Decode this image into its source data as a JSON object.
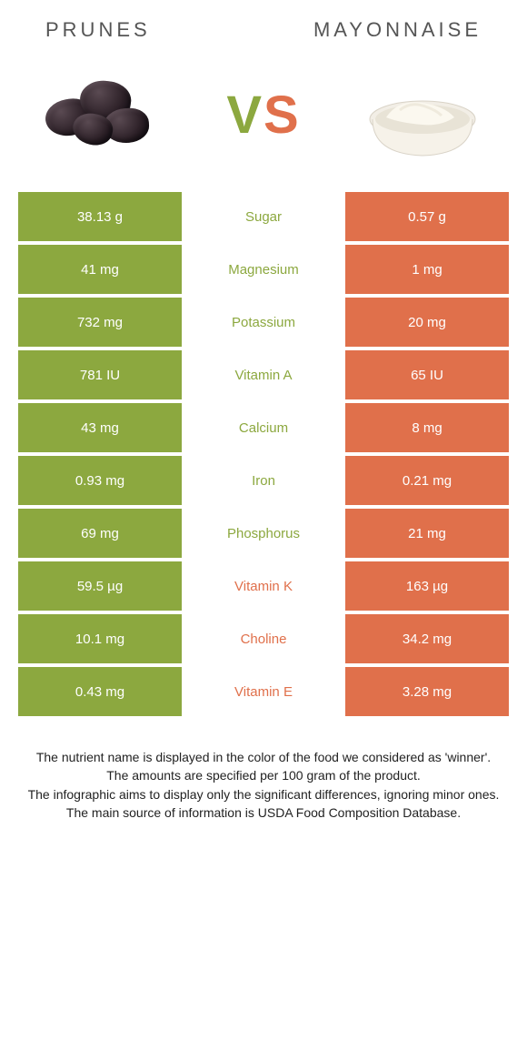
{
  "header": {
    "left_title": "PRUNES",
    "right_title": "MAYONNAISE"
  },
  "vs": {
    "v": "V",
    "s": "S"
  },
  "colors": {
    "left_bar": "#8ca83f",
    "right_bar": "#e0704b",
    "mid_text_left_win": "#8ca83f",
    "mid_text_right_win": "#e0704b",
    "bg": "#ffffff"
  },
  "rows": [
    {
      "left": "38.13 g",
      "name": "Sugar",
      "right": "0.57 g",
      "winner": "left"
    },
    {
      "left": "41 mg",
      "name": "Magnesium",
      "right": "1 mg",
      "winner": "left"
    },
    {
      "left": "732 mg",
      "name": "Potassium",
      "right": "20 mg",
      "winner": "left"
    },
    {
      "left": "781 IU",
      "name": "Vitamin A",
      "right": "65 IU",
      "winner": "left"
    },
    {
      "left": "43 mg",
      "name": "Calcium",
      "right": "8 mg",
      "winner": "left"
    },
    {
      "left": "0.93 mg",
      "name": "Iron",
      "right": "0.21 mg",
      "winner": "left"
    },
    {
      "left": "69 mg",
      "name": "Phosphorus",
      "right": "21 mg",
      "winner": "left"
    },
    {
      "left": "59.5 µg",
      "name": "Vitamin K",
      "right": "163 µg",
      "winner": "right"
    },
    {
      "left": "10.1 mg",
      "name": "Choline",
      "right": "34.2 mg",
      "winner": "right"
    },
    {
      "left": "0.43 mg",
      "name": "Vitamin E",
      "right": "3.28 mg",
      "winner": "right"
    }
  ],
  "footer": {
    "line1": "The nutrient name is displayed in the color of the food we considered as 'winner'.",
    "line2": "The amounts are specified per 100 gram of the product.",
    "line3": "The infographic aims to display only the significant differences, ignoring minor ones.",
    "line4": "The main source of information is USDA Food Composition Database."
  }
}
